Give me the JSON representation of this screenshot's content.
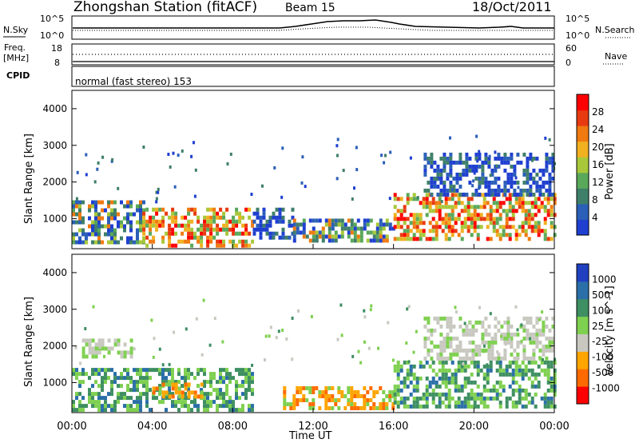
{
  "header": {
    "title": "Zhongshan Station (fitACF)",
    "beam": "Beam 15",
    "date": "18/Oct/2011"
  },
  "top_panels": {
    "nsky_label": "N.Sky",
    "nsearch_label": "N.Search",
    "nsky_ticks": [
      "10^5",
      "10^0"
    ],
    "nsearch_ticks": [
      "10^5",
      "10^0"
    ],
    "freq_label_1": "Freq.",
    "freq_label_2": "[MHz]",
    "freq_ticks": [
      "18",
      "8"
    ],
    "nave_label": "Nave",
    "nave_ticks": [
      "60",
      "0"
    ],
    "cpid_label": "CPID",
    "cpid_text": "normal (fast stereo) 153"
  },
  "x_axis": {
    "label": "Time UT",
    "ticks": [
      "00:00",
      "04:00",
      "08:00",
      "12:00",
      "16:00",
      "20:00",
      "00:00"
    ]
  },
  "colors": {
    "power": [
      "#1f3fd0",
      "#2b5fb8",
      "#3f7f6a",
      "#5aa85a",
      "#a8c83a",
      "#f0b020",
      "#f07a10",
      "#e83a10",
      "#ff0000"
    ],
    "velocity": [
      "#ff0000",
      "#ff6a00",
      "#ffa500",
      "#c8c8c0",
      "#7fd050",
      "#3e8f62",
      "#2a6fa8",
      "#2040c0"
    ]
  },
  "chart_data": [
    {
      "type": "heatmap",
      "title": "",
      "ylabel": "Slant Range [km]",
      "xlabel": "",
      "ylim": [
        180,
        4500
      ],
      "y_ticks": [
        "1000",
        "2000",
        "3000",
        "4000"
      ],
      "y_tick_values": [
        1000,
        2000,
        3000,
        4000
      ],
      "colorbar_label": "Power [dB]",
      "colorbar_ticks": [
        "4",
        "8",
        "12",
        "16",
        "20",
        "24",
        "28"
      ],
      "colorbar_range": [
        0,
        32
      ],
      "x_hours": [
        0,
        24
      ],
      "regions": [
        {
          "t0": 0.0,
          "t1": 3.5,
          "r0": 300,
          "r1": 1500,
          "level": "mixed"
        },
        {
          "t0": 3.5,
          "t1": 9.0,
          "r0": 300,
          "r1": 1300,
          "level": "strong"
        },
        {
          "t0": 9.0,
          "t1": 11.0,
          "r0": 500,
          "r1": 1300,
          "level": "weak"
        },
        {
          "t0": 11.0,
          "t1": 16.0,
          "r0": 400,
          "r1": 1000,
          "level": "mixed"
        },
        {
          "t0": 16.0,
          "t1": 24.0,
          "r0": 400,
          "r1": 1700,
          "level": "strong"
        },
        {
          "t0": 17.5,
          "t1": 24.0,
          "r0": 1700,
          "r1": 2800,
          "level": "weak"
        }
      ]
    },
    {
      "type": "heatmap",
      "title": "",
      "ylabel": "Slant Range [km]",
      "xlabel": "Time UT",
      "ylim": [
        180,
        4500
      ],
      "y_ticks": [
        "1000",
        "2000",
        "3000",
        "4000"
      ],
      "y_tick_values": [
        1000,
        2000,
        3000,
        4000
      ],
      "colorbar_label": "Velocity [m s^-1]",
      "colorbar_ticks": [
        "1000",
        "500",
        "100",
        "25",
        "-25",
        "-100",
        "-500",
        "-1000"
      ],
      "x_hours": [
        0,
        24
      ],
      "regions": [
        {
          "t0": 0.0,
          "t1": 9.0,
          "r0": 300,
          "r1": 1400,
          "level": "green"
        },
        {
          "t0": 4.0,
          "t1": 6.5,
          "r0": 600,
          "r1": 1000,
          "level": "orange"
        },
        {
          "t0": 10.5,
          "t1": 16.0,
          "r0": 300,
          "r1": 900,
          "level": "orange"
        },
        {
          "t0": 16.0,
          "t1": 24.0,
          "r0": 400,
          "r1": 1600,
          "level": "green"
        },
        {
          "t0": 17.5,
          "t1": 24.0,
          "r0": 1600,
          "r1": 2800,
          "level": "grey"
        },
        {
          "t0": 0.5,
          "t1": 3.0,
          "r0": 1700,
          "r1": 2200,
          "level": "grey"
        }
      ]
    }
  ]
}
